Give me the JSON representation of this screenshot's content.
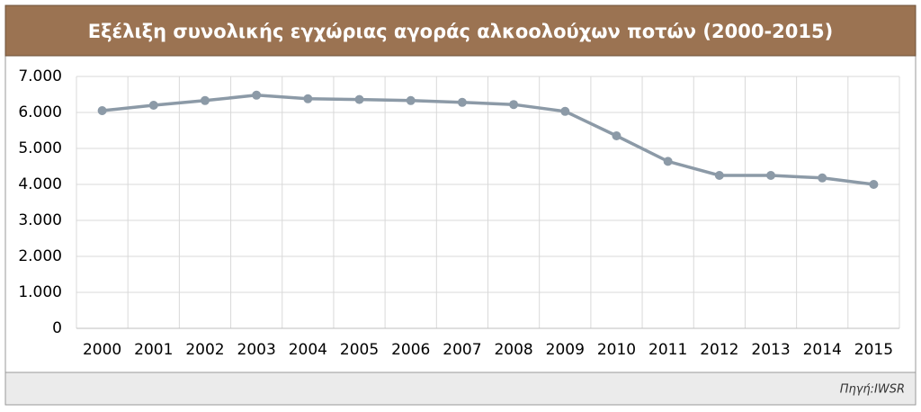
{
  "chart_data": {
    "type": "line",
    "title": "Εξέλιξη συνολικής εγχώριας αγοράς αλκοολούχων ποτών (2000-2015)",
    "source": "Πηγή:IWSR",
    "categories": [
      "2000",
      "2001",
      "2002",
      "2003",
      "2004",
      "2005",
      "2006",
      "2007",
      "2008",
      "2009",
      "2010",
      "2011",
      "2012",
      "2013",
      "2014",
      "2015"
    ],
    "series": [
      {
        "color": "#8c9aa7",
        "values": [
          6050,
          6200,
          6330,
          6480,
          6380,
          6360,
          6330,
          6280,
          6220,
          6030,
          5350,
          4640,
          4250,
          4250,
          4180,
          4000
        ]
      }
    ],
    "ylim": [
      0,
      7000
    ],
    "yticks": [
      0,
      {
        "value": 1000,
        "label": "1.000"
      },
      {
        "value": 2000,
        "label": "2.000"
      },
      {
        "value": 3000,
        "label": "3.000"
      },
      {
        "value": 4000,
        "label": "4.000"
      },
      {
        "value": 5000,
        "label": "5.000"
      },
      {
        "value": 6000,
        "label": "6.000"
      },
      {
        "value": 7000,
        "label": "7.000"
      }
    ],
    "grid": true
  }
}
